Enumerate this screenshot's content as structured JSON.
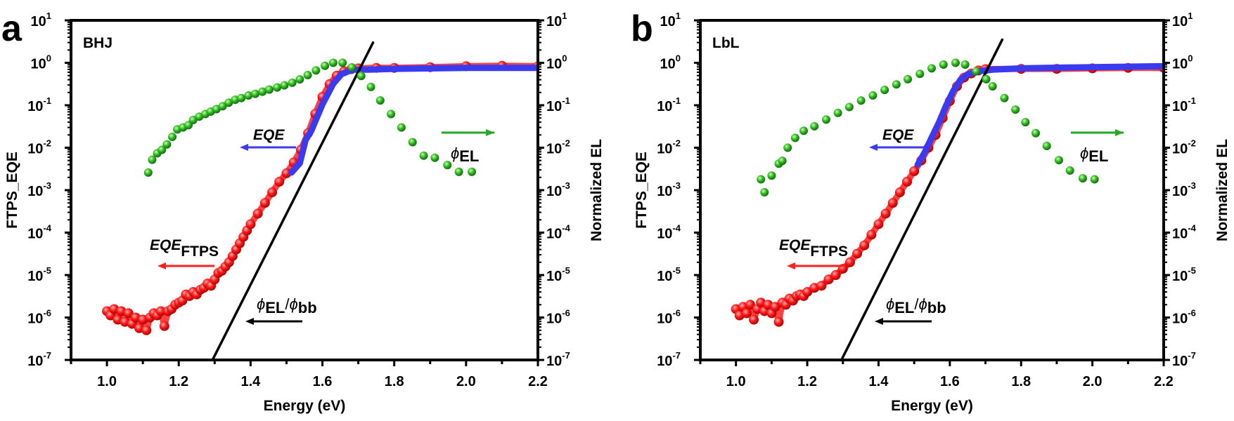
{
  "chart_data": [
    {
      "type": "scatter",
      "panel_label": "a",
      "sample_label": "BHJ",
      "xlabel": "Energy (eV)",
      "ylabel_left": "FTPS_EQE",
      "ylabel_right": "Normalized EL",
      "xlim": [
        0.9,
        2.2
      ],
      "ylim": [
        1e-07,
        10
      ],
      "yscale": "log",
      "xticks": [
        "1.0",
        "1.2",
        "1.4",
        "1.6",
        "1.8",
        "2.0",
        "2.2"
      ],
      "ytick_exponents": [
        1,
        0,
        -1,
        -2,
        -3,
        -4,
        -5,
        -6,
        -7
      ],
      "grid": false,
      "annotations": {
        "eqe": "EQE",
        "eqe_ftps_main": "EQE",
        "eqe_ftps_sub": "FTPS",
        "phi": "ϕ",
        "el_sub": "EL",
        "slash": "/",
        "bb_sub": "bb"
      },
      "series": [
        {
          "key": "eqe_ftps",
          "color": "#ff2020",
          "kind": "scatter",
          "x": [
            1.0,
            1.01,
            1.02,
            1.03,
            1.04,
            1.05,
            1.06,
            1.07,
            1.08,
            1.09,
            1.1,
            1.11,
            1.12,
            1.13,
            1.14,
            1.15,
            1.16,
            1.17,
            1.18,
            1.19,
            1.2,
            1.21,
            1.22,
            1.23,
            1.24,
            1.25,
            1.26,
            1.27,
            1.28,
            1.29,
            1.3,
            1.31,
            1.32,
            1.33,
            1.34,
            1.35,
            1.36,
            1.37,
            1.38,
            1.39,
            1.4,
            1.42,
            1.44,
            1.46,
            1.48,
            1.5,
            1.52,
            1.54,
            1.56,
            1.58,
            1.6,
            1.62,
            1.64,
            1.66,
            1.68,
            1.7,
            1.75,
            1.8,
            1.9,
            2.0,
            2.1,
            2.2
          ],
          "y": [
            1.41e-06,
            1.12e-06,
            1.58e-06,
            8.9e-07,
            1.41e-06,
            7.9e-07,
            1.26e-06,
            7.1e-07,
            1e-06,
            5.6e-07,
            8.9e-07,
            5e-07,
            1e-06,
            1.26e-06,
            1.12e-06,
            1.41e-06,
            6.3e-07,
            1.41e-06,
            1.58e-06,
            2e-06,
            2.24e-06,
            2.5e-06,
            3.5e-06,
            3.2e-06,
            4e-06,
            3.5e-06,
            4.5e-06,
            5e-06,
            6.3e-06,
            5.6e-06,
            7.9e-06,
            1.12e-05,
            1.26e-05,
            1.58e-05,
            2e-05,
            2.8e-05,
            4e-05,
            5.6e-05,
            7.9e-05,
            0.000112,
            0.000158,
            0.00028,
            0.0005,
            0.00089,
            0.00158,
            0.0025,
            0.0045,
            0.0089,
            0.022,
            0.063,
            0.158,
            0.316,
            0.5,
            0.63,
            0.71,
            0.74,
            0.76,
            0.76,
            0.79,
            0.83,
            0.85,
            0.83
          ]
        },
        {
          "key": "eqe",
          "color": "#3a3af0",
          "kind": "line",
          "x": [
            1.514,
            1.537,
            1.553,
            1.569,
            1.6,
            1.63,
            1.653,
            1.684,
            1.73,
            1.8,
            2.0,
            2.2
          ],
          "y": [
            0.0026,
            0.0043,
            0.015,
            0.025,
            0.105,
            0.32,
            0.54,
            0.69,
            0.69,
            0.72,
            0.76,
            0.76
          ]
        },
        {
          "key": "el_bb",
          "color": "#000000",
          "kind": "line",
          "x": [
            1.294,
            1.741
          ],
          "y": [
            1e-07,
            3.0
          ]
        },
        {
          "key": "phi_el",
          "color": "#22aa22",
          "kind": "scatter",
          "x": [
            1.115,
            1.126,
            1.14,
            1.153,
            1.167,
            1.182,
            1.196,
            1.212,
            1.227,
            1.24,
            1.257,
            1.274,
            1.289,
            1.305,
            1.322,
            1.339,
            1.357,
            1.374,
            1.394,
            1.413,
            1.433,
            1.452,
            1.474,
            1.494,
            1.516,
            1.537,
            1.559,
            1.582,
            1.607,
            1.63,
            1.656,
            1.682,
            1.708,
            1.735,
            1.761,
            1.791,
            1.82,
            1.851,
            1.882,
            1.913,
            1.948,
            1.98,
            2.016
          ],
          "y": [
            0.0026,
            0.0052,
            0.0074,
            0.0089,
            0.012,
            0.018,
            0.027,
            0.03,
            0.034,
            0.045,
            0.054,
            0.062,
            0.071,
            0.081,
            0.095,
            0.115,
            0.135,
            0.148,
            0.17,
            0.186,
            0.209,
            0.234,
            0.263,
            0.295,
            0.339,
            0.407,
            0.513,
            0.66,
            0.85,
            1.0,
            1.0,
            0.78,
            0.49,
            0.27,
            0.13,
            0.062,
            0.03,
            0.0135,
            0.0065,
            0.0058,
            0.0039,
            0.0027,
            0.0027
          ]
        }
      ]
    },
    {
      "type": "scatter",
      "panel_label": "b",
      "sample_label": "LbL",
      "xlabel": "Energy (eV)",
      "ylabel_left": "FTPS_EQE",
      "ylabel_right": "Normalized EL",
      "xlim": [
        0.9,
        2.2
      ],
      "ylim": [
        1e-07,
        10
      ],
      "yscale": "log",
      "xticks": [
        "1.0",
        "1.2",
        "1.4",
        "1.6",
        "1.8",
        "2.0",
        "2.2"
      ],
      "ytick_exponents": [
        1,
        0,
        -1,
        -2,
        -3,
        -4,
        -5,
        -6,
        -7
      ],
      "grid": false,
      "annotations": {
        "eqe": "EQE",
        "eqe_ftps_main": "EQE",
        "eqe_ftps_sub": "FTPS",
        "phi": "ϕ",
        "el_sub": "EL",
        "slash": "/",
        "bb_sub": "bb"
      },
      "series": [
        {
          "key": "eqe_ftps",
          "color": "#ff2020",
          "kind": "scatter",
          "x": [
            1.0,
            1.01,
            1.02,
            1.03,
            1.04,
            1.05,
            1.06,
            1.07,
            1.08,
            1.09,
            1.1,
            1.11,
            1.12,
            1.13,
            1.14,
            1.15,
            1.16,
            1.17,
            1.18,
            1.19,
            1.2,
            1.22,
            1.24,
            1.26,
            1.28,
            1.3,
            1.32,
            1.34,
            1.36,
            1.38,
            1.4,
            1.42,
            1.44,
            1.46,
            1.48,
            1.5,
            1.52,
            1.54,
            1.56,
            1.58,
            1.6,
            1.62,
            1.64,
            1.66,
            1.68,
            1.7,
            1.8,
            1.9,
            2.0,
            2.1,
            2.2
          ],
          "y": [
            1.58e-06,
            1.12e-06,
            1.78e-06,
            1.26e-06,
            2e-06,
            8.9e-07,
            1.58e-06,
            2.24e-06,
            1.41e-06,
            2e-06,
            1.26e-06,
            1.78e-06,
            7.9e-07,
            2.24e-06,
            2e-06,
            2.8e-06,
            2.5e-06,
            3.2e-06,
            3.5e-06,
            3.2e-06,
            4e-06,
            5e-06,
            5.6e-06,
            7.9e-06,
            1e-05,
            1.41e-05,
            2e-05,
            3.2e-05,
            5e-05,
            8.9e-05,
            0.000158,
            0.00028,
            0.0005,
            0.00089,
            0.00158,
            0.0028,
            0.005,
            0.01,
            0.02,
            0.05,
            0.126,
            0.28,
            0.45,
            0.56,
            0.66,
            0.71,
            0.72,
            0.72,
            0.74,
            0.76,
            0.76
          ]
        },
        {
          "key": "eqe",
          "color": "#3a3af0",
          "kind": "line",
          "x": [
            1.51,
            1.53,
            1.55,
            1.57,
            1.59,
            1.61,
            1.63,
            1.65,
            1.68,
            1.72,
            1.8,
            2.0,
            2.2
          ],
          "y": [
            0.004,
            0.0079,
            0.018,
            0.04,
            0.1,
            0.22,
            0.4,
            0.54,
            0.63,
            0.69,
            0.74,
            0.79,
            0.83
          ]
        },
        {
          "key": "el_bb",
          "color": "#000000",
          "kind": "line",
          "x": [
            1.296,
            1.747
          ],
          "y": [
            1e-07,
            3.5
          ]
        },
        {
          "key": "phi_el",
          "color": "#22aa22",
          "kind": "scatter",
          "x": [
            1.07,
            1.08,
            1.1,
            1.12,
            1.13,
            1.145,
            1.166,
            1.19,
            1.22,
            1.253,
            1.286,
            1.318,
            1.351,
            1.384,
            1.417,
            1.45,
            1.482,
            1.516,
            1.549,
            1.582,
            1.616,
            1.643,
            1.674,
            1.702,
            1.72,
            1.753,
            1.784,
            1.812,
            1.841,
            1.872,
            1.906,
            1.937,
            1.973,
            2.006
          ],
          "y": [
            0.0018,
            0.00089,
            0.0022,
            0.0042,
            0.0049,
            0.01,
            0.017,
            0.025,
            0.032,
            0.046,
            0.066,
            0.091,
            0.129,
            0.17,
            0.23,
            0.31,
            0.41,
            0.55,
            0.74,
            0.91,
            1.0,
            0.91,
            0.63,
            0.41,
            0.28,
            0.148,
            0.079,
            0.04,
            0.022,
            0.011,
            0.0051,
            0.0029,
            0.0019,
            0.0018
          ]
        }
      ]
    }
  ]
}
